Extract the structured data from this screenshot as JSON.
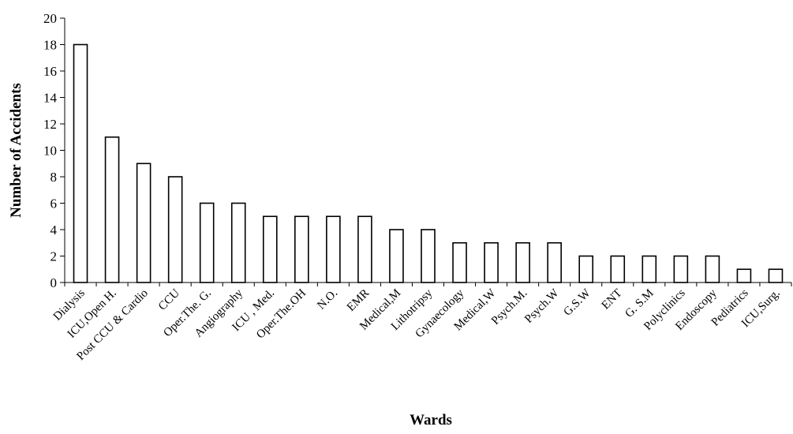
{
  "chart_data": {
    "type": "bar",
    "title": "",
    "xlabel": "Wards",
    "ylabel": "Number of Accidents",
    "ylim": [
      0,
      20
    ],
    "yticks": [
      0,
      2,
      4,
      6,
      8,
      10,
      12,
      14,
      16,
      18,
      20
    ],
    "grid": false,
    "legend": "none",
    "bar_fill": "#ffffff",
    "bar_stroke": "#000000",
    "categories": [
      "Dialysis",
      "ICU,Open H.",
      "Post CCU & Cardio",
      "CCU",
      "Oper.The. G.",
      "Angiography",
      "ICU , Med.",
      "Oper.The.OH",
      "N.O.",
      "EMR",
      "Medical,M",
      "Lithotripsy",
      "Gynaecology",
      "Medical,W",
      "Psych.M.",
      "Psych.W",
      "G.S.W",
      "ENT",
      "G. S.M",
      "Polyclinics",
      "Endoscopy",
      "Pediatrics",
      "ICU,Surg."
    ],
    "values": [
      18,
      11,
      9,
      8,
      6,
      6,
      5,
      5,
      5,
      5,
      4,
      4,
      3,
      3,
      3,
      3,
      2,
      2,
      2,
      2,
      2,
      1,
      1
    ]
  }
}
